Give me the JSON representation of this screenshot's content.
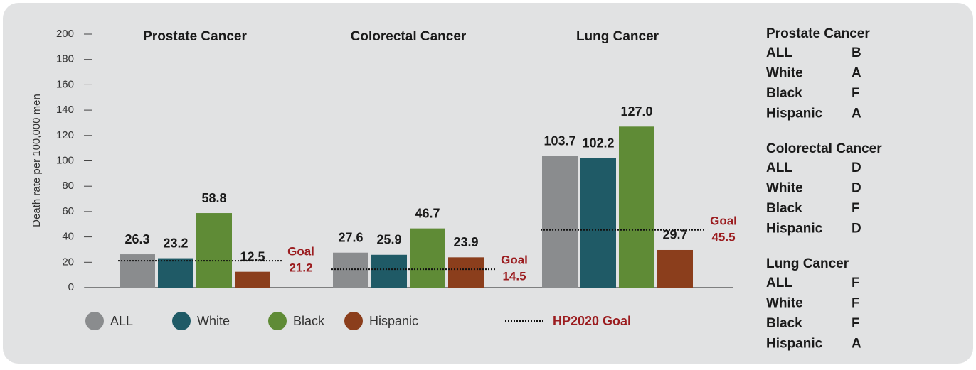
{
  "chart_data": {
    "type": "bar",
    "y_label": "Death rate per 100,000 men",
    "categories": [
      "Prostate Cancer",
      "Colorectal Cancer",
      "Lung Cancer"
    ],
    "series": [
      {
        "name": "ALL",
        "color": "#8a8c8e",
        "values": [
          26.3,
          27.6,
          103.7
        ]
      },
      {
        "name": "White",
        "color": "#1f5a66",
        "values": [
          23.2,
          25.9,
          102.2
        ]
      },
      {
        "name": "Black",
        "color": "#5f8b36",
        "values": [
          58.8,
          46.7,
          127.0
        ],
        "value_labels": [
          "58.8",
          "46.7",
          "127.0"
        ]
      },
      {
        "name": "Hispanic",
        "color": "#8b3e1c",
        "values": [
          12.5,
          23.9,
          29.7
        ]
      }
    ],
    "goal_name": "HP2020 Goal",
    "goal_label": "Goal",
    "goal_color": "#9b1c1f",
    "goals": [
      21.2,
      14.5,
      45.5
    ],
    "ylim": [
      0,
      200
    ],
    "yticks": [
      0,
      20,
      40,
      60,
      80,
      100,
      120,
      140,
      160,
      180,
      200
    ]
  },
  "grades": [
    {
      "title": "Prostate Cancer",
      "rows": [
        [
          "ALL",
          "B"
        ],
        [
          "White",
          "A"
        ],
        [
          "Black",
          "F"
        ],
        [
          "Hispanic",
          "A"
        ]
      ]
    },
    {
      "title": "Colorectal Cancer",
      "rows": [
        [
          "ALL",
          "D"
        ],
        [
          "White",
          "D"
        ],
        [
          "Black",
          "F"
        ],
        [
          "Hispanic",
          "D"
        ]
      ]
    },
    {
      "title": "Lung Cancer",
      "rows": [
        [
          "ALL",
          "F"
        ],
        [
          "White",
          "F"
        ],
        [
          "Black",
          "F"
        ],
        [
          "Hispanic",
          "A"
        ]
      ]
    }
  ]
}
